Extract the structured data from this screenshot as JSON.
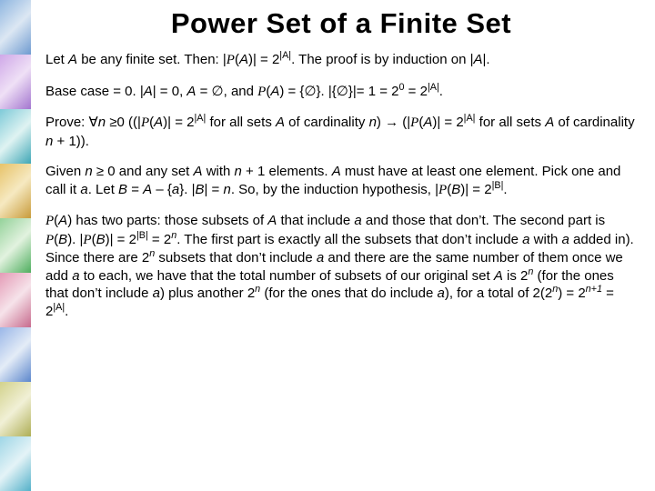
{
  "title": "Power Set of a Finite Set",
  "paragraphs": {
    "p1_a": "Let ",
    "p1_b": " be any finite set.  Then:  |",
    "p1_c": "(",
    "p1_d": ")| = 2",
    "p1_e": ".  The proof is by induction on |",
    "p1_f": "|.",
    "p2_a": "Base case = 0.  |",
    "p2_b": "| = 0, ",
    "p2_c": " = ",
    "p2_d": ", and ",
    "p2_e": "(",
    "p2_f": ") = {",
    "p2_g": "}.  |{",
    "p2_h": "}|= 1 = 2",
    "p2_i": " = 2",
    "p2_j": ".",
    "p3_a": "Prove: ",
    "p3_b": " ",
    "p3_c": "0 ((|",
    "p3_d": "(",
    "p3_e": ")| = 2",
    "p3_f": " for all sets ",
    "p3_g": " of cardinality ",
    "p3_h": ") ",
    "p3_i": " (|",
    "p3_j": "(",
    "p3_k": ")| = 2",
    "p3_l": " for all sets ",
    "p3_m": " of cardinality ",
    "p3_n": " + 1)).",
    "p4_a": "Given ",
    "p4_b": " ",
    "p4_c": " 0 and any set ",
    "p4_d": " with ",
    "p4_e": " + 1 elements.  ",
    "p4_f": " must have at least one element.  Pick one and call it ",
    "p4_g": ".  Let ",
    "p4_h": " = ",
    "p4_i": " – {",
    "p4_j": "}.  |",
    "p4_k": "| = ",
    "p4_l": ".  So, by the induction hypothesis, |",
    "p4_m": "(",
    "p4_n": ")| = 2",
    "p4_o": ".",
    "p5_a": "(",
    "p5_b": ") has two parts: those subsets of ",
    "p5_c": " that include ",
    "p5_d": " and those that don’t.  The second part is ",
    "p5_e": "(",
    "p5_f": ").  |",
    "p5_g": "(",
    "p5_h": ")| = 2",
    "p5_i": " = 2",
    "p5_j": ".  The first part is exactly all the subsets that don’t include ",
    "p5_k": " with ",
    "p5_l": " added in).  Since there are 2",
    "p5_m": " subsets that don’t include ",
    "p5_n": " and there are the same number of them once we add ",
    "p5_o": " to each, we have that the total number of subsets of our original set ",
    "p5_p": " is 2",
    "p5_q": " (for the ones that don’t include ",
    "p5_r": ") plus another 2",
    "p5_s": " (for the ones that do include ",
    "p5_t": "), for a total of 2(2",
    "p5_u": ") = 2",
    "p5_v": " = 2",
    "p5_w": "."
  },
  "sym": {
    "A": "A",
    "B": "B",
    "a": "a",
    "n": "n",
    "P": "P",
    "empty": "∅",
    "forall": "∀",
    "ge": "≥",
    "implies": "→",
    "absA": "|A|",
    "absB": "|B|",
    "zero": "0",
    "nplus1": "n+1"
  },
  "border": {
    "tile_count": 9,
    "colors": [
      "linear-gradient(135deg,#8fb6e0,#dce7f3,#6f9bd0)",
      "linear-gradient(135deg,#cfa8e8,#efe0f6,#a376cf)",
      "linear-gradient(135deg,#7ecad8,#dff3f2,#3fa7b6)",
      "linear-gradient(135deg,#e7c36a,#f6e9c1,#c89b3a)",
      "linear-gradient(135deg,#94d29a,#e2f2df,#4eae5e)",
      "linear-gradient(135deg,#e49bb6,#f6e3ea,#c76a8d)",
      "linear-gradient(135deg,#9ab7e8,#e4ecf7,#5c87cc)",
      "linear-gradient(135deg,#d2d28c,#f1f0d6,#aeae55)",
      "linear-gradient(135deg,#9ed6e6,#e4f3f7,#54b1c9)"
    ]
  }
}
